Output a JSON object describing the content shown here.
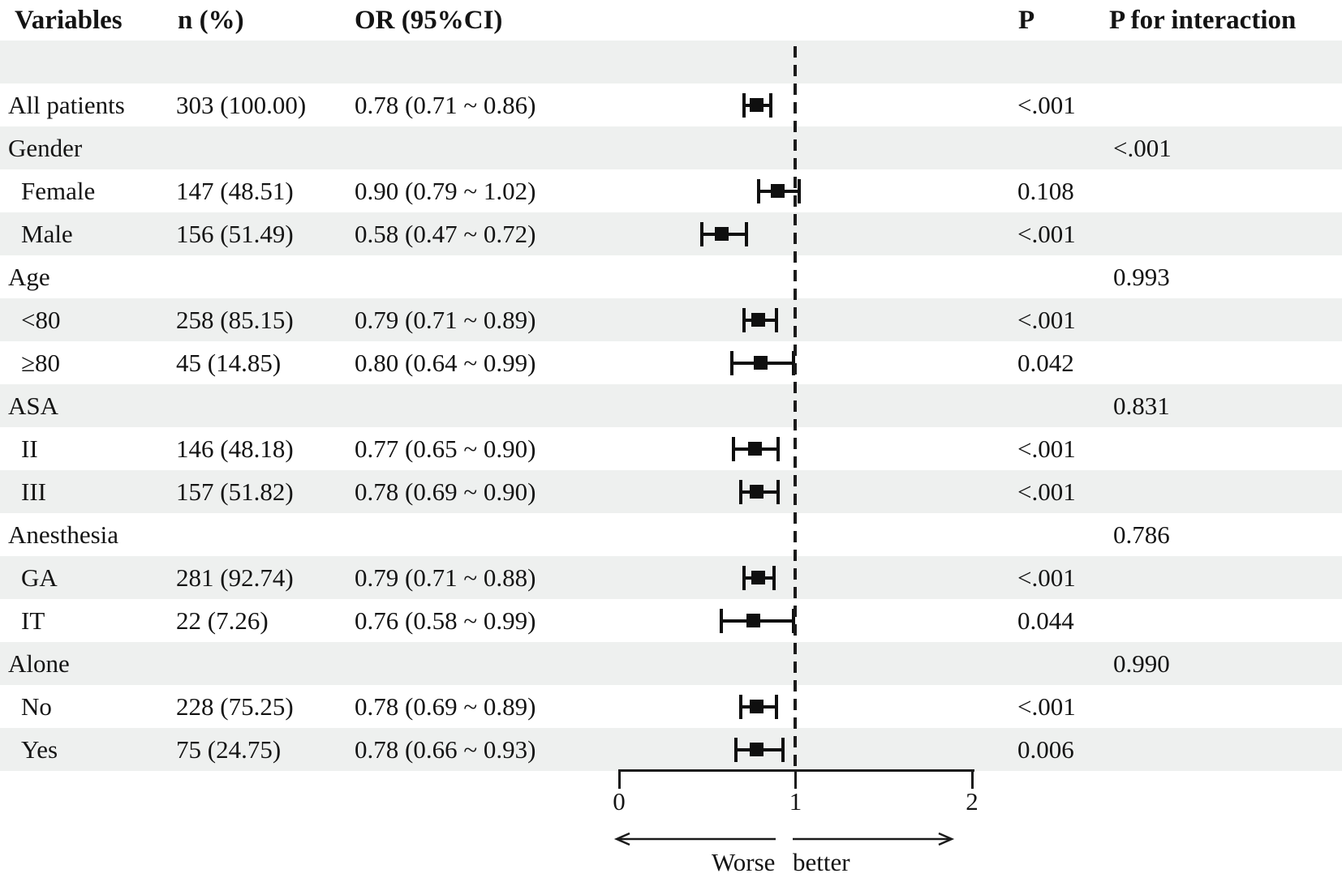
{
  "chart_data": {
    "type": "forest",
    "columns": {
      "variables": "Variables",
      "n_pct": "n (%)",
      "or_ci": "OR (95%CI)",
      "p": "P",
      "p_interaction": "P for interaction"
    },
    "axis": {
      "min": 0,
      "max": 2,
      "tick_labels": [
        "0",
        "1",
        "2"
      ],
      "reference_line": 1,
      "direction_labels": {
        "left": "Worse",
        "right": "better"
      }
    },
    "rows": [
      {
        "label": "",
        "spacer": true
      },
      {
        "label": "All patients",
        "indent": false,
        "n_pct": "303 (100.00)",
        "or_ci": "0.78 (0.71 ~ 0.86)",
        "or": 0.78,
        "ci_low": 0.71,
        "ci_high": 0.86,
        "p": "<.001",
        "p_interaction": ""
      },
      {
        "label": "Gender",
        "indent": false,
        "n_pct": "",
        "or_ci": "",
        "or": null,
        "p": "",
        "p_interaction": "<.001"
      },
      {
        "label": "Female",
        "indent": true,
        "n_pct": "147 (48.51)",
        "or_ci": "0.90 (0.79 ~ 1.02)",
        "or": 0.9,
        "ci_low": 0.79,
        "ci_high": 1.02,
        "p": "0.108",
        "p_interaction": ""
      },
      {
        "label": "Male",
        "indent": true,
        "n_pct": "156 (51.49)",
        "or_ci": "0.58 (0.47 ~ 0.72)",
        "or": 0.58,
        "ci_low": 0.47,
        "ci_high": 0.72,
        "p": "<.001",
        "p_interaction": ""
      },
      {
        "label": "Age",
        "indent": false,
        "n_pct": "",
        "or_ci": "",
        "or": null,
        "p": "",
        "p_interaction": "0.993"
      },
      {
        "label": "<80",
        "indent": true,
        "n_pct": "258 (85.15)",
        "or_ci": "0.79 (0.71 ~ 0.89)",
        "or": 0.79,
        "ci_low": 0.71,
        "ci_high": 0.89,
        "p": "<.001",
        "p_interaction": ""
      },
      {
        "label": "≥80",
        "indent": true,
        "n_pct": "45 (14.85)",
        "or_ci": "0.80 (0.64 ~ 0.99)",
        "or": 0.8,
        "ci_low": 0.64,
        "ci_high": 0.99,
        "p": "0.042",
        "p_interaction": ""
      },
      {
        "label": "ASA",
        "indent": false,
        "n_pct": "",
        "or_ci": "",
        "or": null,
        "p": "",
        "p_interaction": "0.831"
      },
      {
        "label": "II",
        "indent": true,
        "n_pct": "146 (48.18)",
        "or_ci": "0.77 (0.65 ~ 0.90)",
        "or": 0.77,
        "ci_low": 0.65,
        "ci_high": 0.9,
        "p": "<.001",
        "p_interaction": ""
      },
      {
        "label": "III",
        "indent": true,
        "n_pct": "157 (51.82)",
        "or_ci": "0.78 (0.69 ~ 0.90)",
        "or": 0.78,
        "ci_low": 0.69,
        "ci_high": 0.9,
        "p": "<.001",
        "p_interaction": ""
      },
      {
        "label": "Anesthesia",
        "indent": false,
        "n_pct": "",
        "or_ci": "",
        "or": null,
        "p": "",
        "p_interaction": "0.786"
      },
      {
        "label": "GA",
        "indent": true,
        "n_pct": "281 (92.74)",
        "or_ci": "0.79 (0.71 ~ 0.88)",
        "or": 0.79,
        "ci_low": 0.71,
        "ci_high": 0.88,
        "p": "<.001",
        "p_interaction": ""
      },
      {
        "label": "IT",
        "indent": true,
        "n_pct": "22 (7.26)",
        "or_ci": "0.76 (0.58 ~ 0.99)",
        "or": 0.76,
        "ci_low": 0.58,
        "ci_high": 0.99,
        "p": "0.044",
        "p_interaction": ""
      },
      {
        "label": "Alone",
        "indent": false,
        "n_pct": "",
        "or_ci": "",
        "or": null,
        "p": "",
        "p_interaction": "0.990"
      },
      {
        "label": "No",
        "indent": true,
        "n_pct": "228 (75.25)",
        "or_ci": "0.78 (0.69 ~ 0.89)",
        "or": 0.78,
        "ci_low": 0.69,
        "ci_high": 0.89,
        "p": "<.001",
        "p_interaction": ""
      },
      {
        "label": "Yes",
        "indent": true,
        "n_pct": "75 (24.75)",
        "or_ci": "0.78 (0.66 ~ 0.93)",
        "or": 0.78,
        "ci_low": 0.66,
        "ci_high": 0.93,
        "p": "0.006",
        "p_interaction": ""
      }
    ],
    "colors": {
      "row_stripe": "#eef0ef",
      "text": "#141414",
      "marker": "#0f0f0f",
      "line": "#1a1a1a"
    }
  }
}
